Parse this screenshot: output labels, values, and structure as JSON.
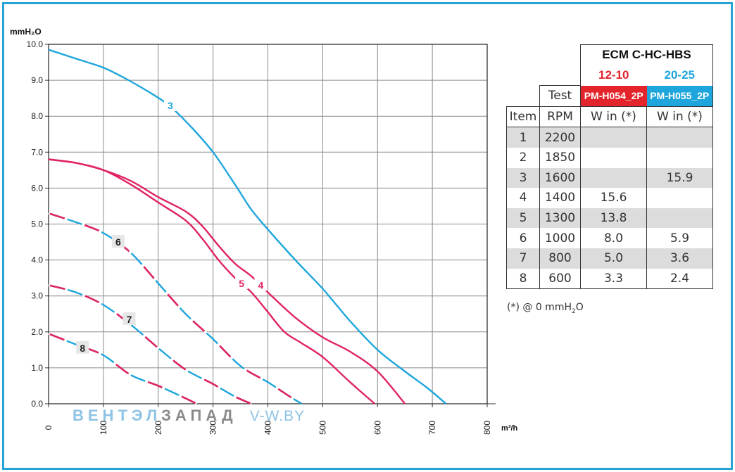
{
  "chart_data": {
    "type": "line",
    "ylabel": "mmH₂O",
    "xlabel": "m³/h",
    "xlim": [
      0,
      800
    ],
    "ylim": [
      0,
      10
    ],
    "x_ticks": [
      "0",
      "100",
      "200",
      "300",
      "400",
      "500",
      "600",
      "700",
      "800"
    ],
    "y_ticks": [
      "0.0",
      "1.0",
      "2.0",
      "3.0",
      "4.0",
      "5.0",
      "6.0",
      "7.0",
      "8.0",
      "9.0",
      "10.0"
    ],
    "grid": true,
    "series": [
      {
        "name": "3",
        "color": "#1ea6dc",
        "dashed": false,
        "label_at": [
          222,
          8.3
        ],
        "points": [
          [
            0,
            9.85
          ],
          [
            50,
            9.6
          ],
          [
            100,
            9.35
          ],
          [
            140,
            9.05
          ],
          [
            180,
            8.7
          ],
          [
            220,
            8.3
          ],
          [
            260,
            7.7
          ],
          [
            300,
            7.0
          ],
          [
            340,
            6.1
          ],
          [
            370,
            5.4
          ],
          [
            400,
            4.85
          ],
          [
            450,
            4.0
          ],
          [
            500,
            3.2
          ],
          [
            550,
            2.3
          ],
          [
            600,
            1.5
          ],
          [
            650,
            0.9
          ],
          [
            690,
            0.45
          ],
          [
            725,
            0.0
          ]
        ]
      },
      {
        "name": "4",
        "color": "#e02462",
        "dashed": false,
        "label_at": [
          387,
          3.3
        ],
        "points": [
          [
            0,
            6.8
          ],
          [
            50,
            6.7
          ],
          [
            100,
            6.5
          ],
          [
            150,
            6.2
          ],
          [
            200,
            5.75
          ],
          [
            250,
            5.35
          ],
          [
            280,
            4.95
          ],
          [
            310,
            4.4
          ],
          [
            340,
            3.9
          ],
          [
            370,
            3.55
          ],
          [
            400,
            3.1
          ],
          [
            450,
            2.4
          ],
          [
            500,
            1.85
          ],
          [
            550,
            1.45
          ],
          [
            600,
            0.9
          ],
          [
            650,
            0.0
          ]
        ]
      },
      {
        "name": "5",
        "color": "#e02462",
        "dashed": false,
        "label_at": [
          352,
          3.35
        ],
        "points": [
          [
            0,
            6.8
          ],
          [
            50,
            6.7
          ],
          [
            100,
            6.5
          ],
          [
            150,
            6.1
          ],
          [
            200,
            5.6
          ],
          [
            250,
            5.1
          ],
          [
            280,
            4.6
          ],
          [
            310,
            4.0
          ],
          [
            340,
            3.5
          ],
          [
            370,
            3.1
          ],
          [
            400,
            2.55
          ],
          [
            430,
            2.0
          ],
          [
            460,
            1.7
          ],
          [
            500,
            1.3
          ],
          [
            550,
            0.6
          ],
          [
            595,
            0.0
          ]
        ]
      },
      {
        "name": "6",
        "color": "#1ea6dc",
        "alt_color": "#e02462",
        "dashed": true,
        "label_at": [
          127,
          4.5
        ],
        "points": [
          [
            0,
            5.3
          ],
          [
            50,
            5.05
          ],
          [
            100,
            4.75
          ],
          [
            150,
            4.2
          ],
          [
            200,
            3.35
          ],
          [
            250,
            2.5
          ],
          [
            300,
            1.8
          ],
          [
            350,
            1.05
          ],
          [
            400,
            0.6
          ],
          [
            440,
            0.2
          ],
          [
            462,
            0.0
          ]
        ]
      },
      {
        "name": "7",
        "color": "#1ea6dc",
        "alt_color": "#e02462",
        "dashed": true,
        "label_at": [
          147,
          2.35
        ],
        "points": [
          [
            0,
            3.3
          ],
          [
            50,
            3.1
          ],
          [
            100,
            2.75
          ],
          [
            150,
            2.2
          ],
          [
            200,
            1.55
          ],
          [
            250,
            0.95
          ],
          [
            300,
            0.55
          ],
          [
            340,
            0.2
          ],
          [
            370,
            0.0
          ]
        ]
      },
      {
        "name": "8",
        "color": "#1ea6dc",
        "alt_color": "#e02462",
        "dashed": true,
        "label_at": [
          62,
          1.55
        ],
        "points": [
          [
            0,
            1.95
          ],
          [
            50,
            1.65
          ],
          [
            100,
            1.35
          ],
          [
            150,
            0.8
          ],
          [
            200,
            0.5
          ],
          [
            250,
            0.15
          ],
          [
            270,
            0.0
          ]
        ]
      }
    ]
  },
  "table": {
    "title": "ECM C-HC-HBS",
    "col_red": "12-10",
    "col_blue": "20-25",
    "test_label": "Test",
    "model_red": "PM-H054_2P",
    "model_blue": "PM-H055_2P",
    "head_item": "Item",
    "head_rpm": "RPM",
    "head_w1": "W in (*)",
    "head_w2": "W in (*)",
    "rows": [
      {
        "item": "1",
        "rpm": "2200",
        "w1": "",
        "w2": ""
      },
      {
        "item": "2",
        "rpm": "1850",
        "w1": "",
        "w2": ""
      },
      {
        "item": "3",
        "rpm": "1600",
        "w1": "",
        "w2": "15.9"
      },
      {
        "item": "4",
        "rpm": "1400",
        "w1": "15.6",
        "w2": ""
      },
      {
        "item": "5",
        "rpm": "1300",
        "w1": "13.8",
        "w2": ""
      },
      {
        "item": "6",
        "rpm": "1000",
        "w1": "8.0",
        "w2": "5.9"
      },
      {
        "item": "7",
        "rpm": "800",
        "w1": "5.0",
        "w2": "3.6"
      },
      {
        "item": "8",
        "rpm": "600",
        "w1": "3.3",
        "w2": "2.4"
      }
    ]
  },
  "footnote": {
    "prefix": "(*) @ 0 mmH",
    "sub": "2",
    "suffix": "O"
  },
  "watermark": {
    "part1": "ВЕНТЭЛ",
    "part2": "ЗАПАД",
    "part3": "V-W.BY"
  },
  "colors": {
    "frame": "#29a3d6",
    "red": "#e02462",
    "blue": "#1ea6dc",
    "table_red": "#e3242b"
  }
}
